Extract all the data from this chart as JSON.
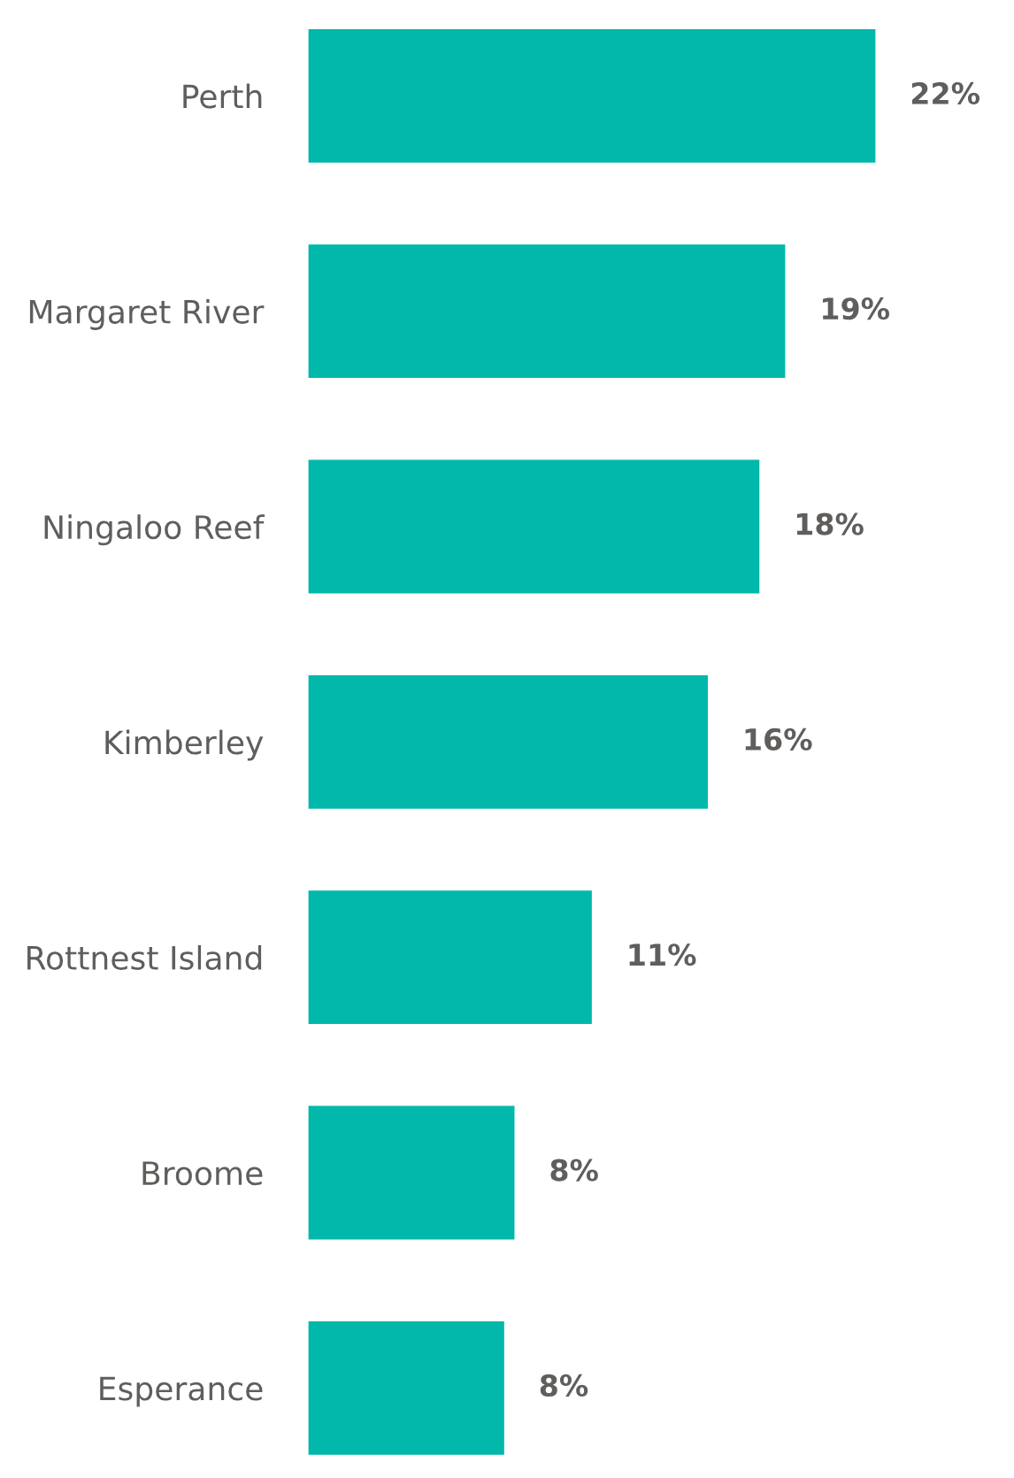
{
  "chart_data": {
    "type": "bar",
    "orientation": "horizontal",
    "categories": [
      "Perth",
      "Margaret River",
      "Ningaloo Reef",
      "Kimberley",
      "Rottnest Island",
      "Broome",
      "Esperance"
    ],
    "values": [
      22,
      18.5,
      17.5,
      15.5,
      11,
      8,
      7.6
    ],
    "value_labels": [
      "22%",
      "19%",
      "18%",
      "16%",
      "11%",
      "8%",
      "8%"
    ],
    "color": "#01b8aa"
  }
}
